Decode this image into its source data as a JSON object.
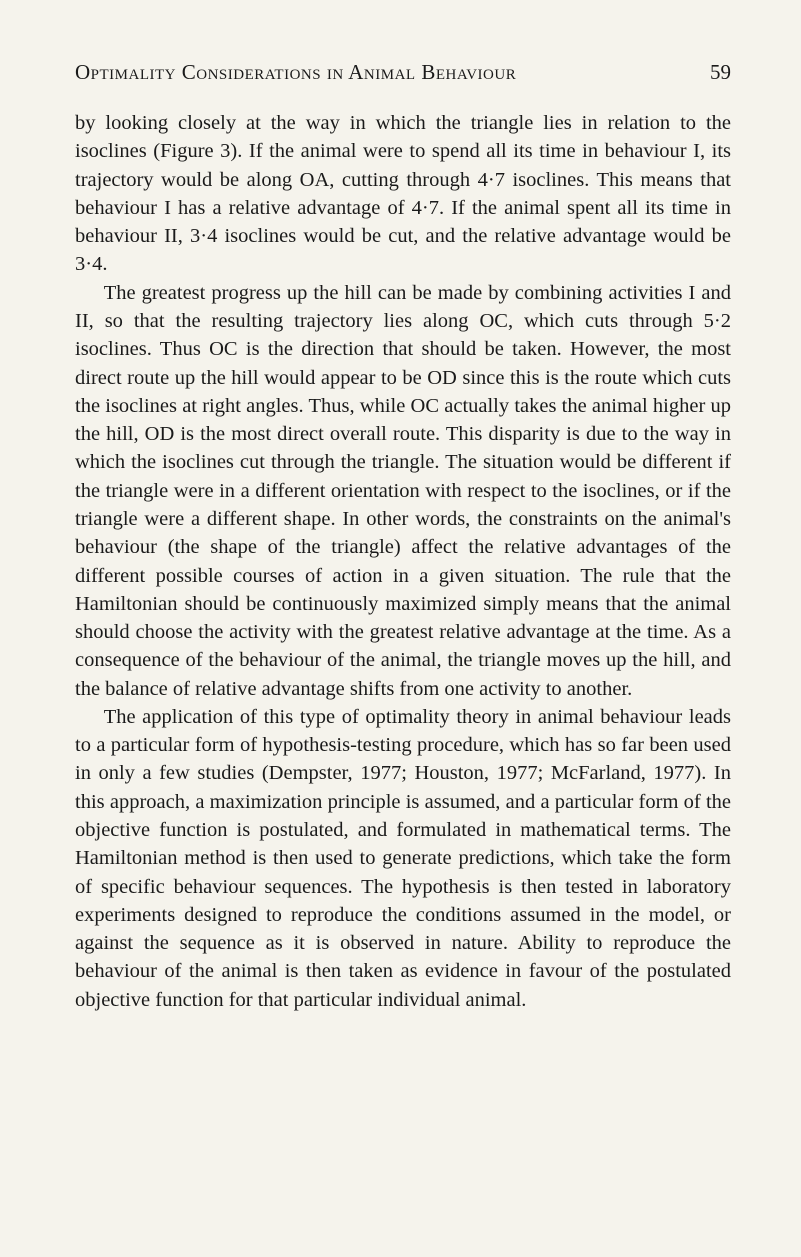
{
  "header": {
    "running_head": "Optimality Considerations in Animal Behaviour",
    "page_number": "59"
  },
  "paragraphs": [
    "by looking closely at the way in which the triangle lies in relation to the isoclines (Figure 3). If the animal were to spend all its time in behaviour I, its trajectory would be along OA, cutting through 4·7 isoclines. This means that behaviour I has a relative advantage of 4·7. If the animal spent all its time in behaviour II, 3·4 isoclines would be cut, and the relative advantage would be 3·4.",
    "The greatest progress up the hill can be made by combining activities I and II, so that the resulting trajectory lies along OC, which cuts through 5·2 isoclines. Thus OC is the direction that should be taken. However, the most direct route up the hill would appear to be OD since this is the route which cuts the isoclines at right angles. Thus, while OC actually takes the animal higher up the hill, OD is the most direct overall route. This disparity is due to the way in which the isoclines cut through the triangle. The situation would be different if the triangle were in a different orientation with respect to the isoclines, or if the triangle were a different shape. In other words, the constraints on the animal's behaviour (the shape of the triangle) affect the relative advantages of the different possible courses of action in a given situation. The rule that the Hamiltonian should be continuously maximized simply means that the animal should choose the activity with the greatest relative advantage at the time. As a consequence of the behaviour of the animal, the triangle moves up the hill, and the balance of relative advantage shifts from one activity to another.",
    "The application of this type of optimality theory in animal behaviour leads to a particular form of hypothesis-testing procedure, which has so far been used in only a few studies (Dempster, 1977; Houston, 1977; McFarland, 1977). In this approach, a maximization principle is assumed, and a particular form of the objective function is postulated, and formulated in mathematical terms. The Hamiltonian method is then used to generate predictions, which take the form of specific behaviour sequences. The hypothesis is then tested in laboratory experiments designed to reproduce the conditions assumed in the model, or against the sequence as it is observed in nature. Ability to reproduce the behaviour of the animal is then taken as evidence in favour of the postulated objective function for that particular individual animal."
  ]
}
